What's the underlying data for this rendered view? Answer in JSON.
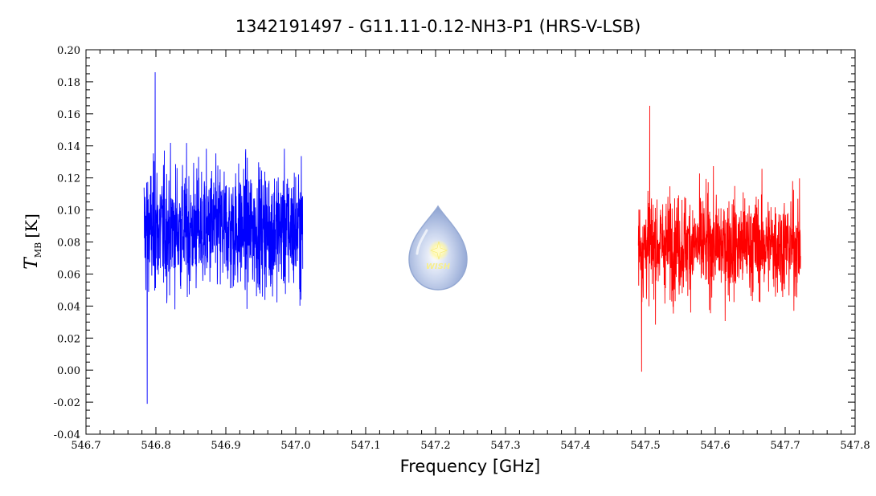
{
  "chart_data": {
    "type": "line",
    "title": "1342191497 - G11.11-0.12-NH3-P1 (HRS-V-LSB)",
    "xlabel": "Frequency [GHz]",
    "ylabel_main": "T",
    "ylabel_sub": "MB",
    "ylabel_unit": "[K]",
    "xlim": [
      546.7,
      547.8
    ],
    "ylim": [
      -0.04,
      0.2
    ],
    "xticks": [
      546.7,
      546.8,
      546.9,
      547.0,
      547.1,
      547.2,
      547.3,
      547.4,
      547.5,
      547.6,
      547.7,
      547.8
    ],
    "xtick_labels": [
      "546.7",
      "546.8",
      "546.9",
      "547.0",
      "547.1",
      "547.2",
      "547.3",
      "547.4",
      "547.5",
      "547.6",
      "547.7",
      "547.8"
    ],
    "yticks": [
      -0.04,
      -0.02,
      0.0,
      0.02,
      0.04,
      0.06,
      0.08,
      0.1,
      0.12,
      0.14,
      0.16,
      0.18,
      0.2
    ],
    "ytick_labels": [
      "-0.04",
      "-0.02",
      "0.00",
      "0.02",
      "0.04",
      "0.06",
      "0.08",
      "0.10",
      "0.12",
      "0.14",
      "0.16",
      "0.18",
      "0.20"
    ],
    "series": [
      {
        "color": "#0000ff",
        "x_range": [
          546.783,
          547.01
        ],
        "mean": 0.088,
        "min": -0.021,
        "max": 0.186,
        "points": 900
      },
      {
        "color": "#ff0000",
        "x_range": [
          547.49,
          547.722
        ],
        "mean": 0.078,
        "min": -0.001,
        "max": 0.165,
        "points": 900
      }
    ],
    "logo": {
      "text": "WISH"
    }
  }
}
